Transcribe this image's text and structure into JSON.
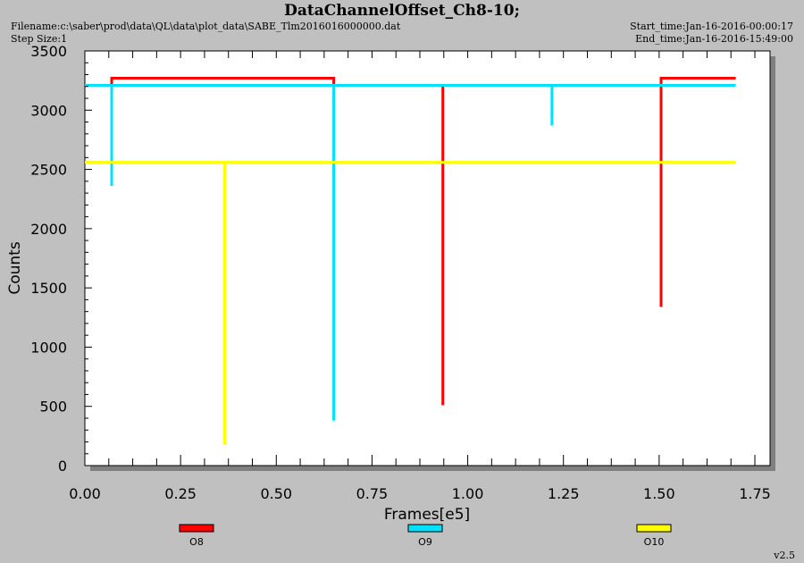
{
  "header": {
    "title": "DataChannelOffset_Ch8-10;",
    "filename": "Filename:c:\\saber\\prod\\data\\QL\\data\\plot_data\\SABE_Tlm2016016000000.dat",
    "step_size": "Step Size:1",
    "start_time": "Start_time:Jan-16-2016-00:00:17",
    "end_time": "End_time:Jan-16-2016-15:49:00"
  },
  "version": "v2.5",
  "colors": {
    "O8": "#ff0000",
    "O9": "#00e0ff",
    "O10": "#ffff00",
    "plot_bg": "#ffffff",
    "page_bg": "#c0c0c0"
  },
  "chart_data": {
    "type": "line",
    "title": "DataChannelOffset_Ch8-10;",
    "xlabel": "Frames[e5]",
    "ylabel": "Counts",
    "xlim": [
      0,
      1.75
    ],
    "ylim": [
      0,
      3500
    ],
    "xticks": [
      "0.00",
      "0.25",
      "0.50",
      "0.75",
      "1.00",
      "1.25",
      "1.50",
      "1.75"
    ],
    "yticks": [
      "0",
      "500",
      "1000",
      "1500",
      "2000",
      "2500",
      "3000",
      "3500"
    ],
    "legend_position": "bottom",
    "series": [
      {
        "name": "O8",
        "color": "#ff0000",
        "x": [
          0.07,
          0.07,
          0.65,
          0.65,
          0.935,
          0.935,
          0.935,
          1.505,
          1.505,
          1.505,
          1.7
        ],
        "y": [
          3210,
          3270,
          3270,
          3210,
          3210,
          510,
          3210,
          3210,
          1340,
          3270,
          3270
        ]
      },
      {
        "name": "O9",
        "color": "#00e0ff",
        "x": [
          0.0,
          0.07,
          0.07,
          0.07,
          0.65,
          0.65,
          0.65,
          1.22,
          1.22,
          1.22,
          1.7
        ],
        "y": [
          3210,
          3210,
          2360,
          3210,
          3210,
          380,
          3210,
          3210,
          2870,
          3210,
          3210
        ]
      },
      {
        "name": "O10",
        "color": "#ffff00",
        "x": [
          0.0,
          0.365,
          0.365,
          0.365,
          1.7
        ],
        "y": [
          2560,
          2560,
          180,
          2560,
          2560
        ]
      }
    ]
  }
}
